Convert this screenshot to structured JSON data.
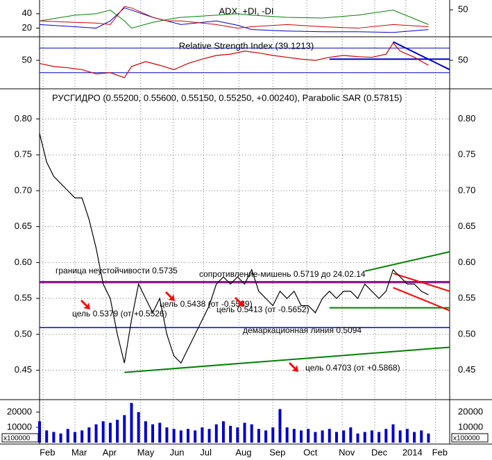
{
  "xaxis": {
    "xlim": [
      0,
      58
    ],
    "xticks": [
      {
        "value": 0.5,
        "label": "Feb"
      },
      {
        "value": 5,
        "label": "Mar"
      },
      {
        "value": 9.4,
        "label": "Apr"
      },
      {
        "value": 14.3,
        "label": "May"
      },
      {
        "value": 18.9,
        "label": "Jun"
      },
      {
        "value": 23.2,
        "label": "Jul"
      },
      {
        "value": 28.2,
        "label": "Aug"
      },
      {
        "value": 33,
        "label": "Sep"
      },
      {
        "value": 37.8,
        "label": "Oct"
      },
      {
        "value": 42.8,
        "label": "Nov"
      },
      {
        "value": 47.4,
        "label": "Dec"
      },
      {
        "value": 51.8,
        "label": "2014"
      },
      {
        "value": 56,
        "label": "Feb"
      }
    ]
  },
  "chart_data": [
    {
      "type": "line",
      "title": "ADX, +DI, -DI",
      "ylim": [
        9,
        59
      ],
      "yticks": [
        20,
        40
      ],
      "y2lim": [
        10,
        65
      ],
      "y2ticks": [
        50
      ],
      "x": [
        0,
        5,
        8,
        10,
        12,
        13,
        16,
        18,
        20,
        25,
        28,
        30,
        35,
        40,
        45,
        50,
        55
      ],
      "series": [
        {
          "color": "#0000cc",
          "values": [
            25,
            22,
            20,
            30,
            48,
            45,
            35,
            30,
            25,
            30,
            24,
            18,
            16,
            15,
            15,
            14,
            18
          ]
        },
        {
          "color": "#008000",
          "values": [
            30,
            38,
            40,
            45,
            30,
            20,
            28,
            32,
            35,
            38,
            40,
            38,
            35,
            34,
            38,
            45,
            25
          ]
        },
        {
          "color": "#cc0000",
          "values": [
            30,
            28,
            27,
            25,
            50,
            48,
            35,
            30,
            30,
            25,
            20,
            22,
            25,
            22,
            20,
            25,
            22
          ]
        }
      ]
    },
    {
      "type": "line",
      "title": "Relative Strength Index (39.1213)",
      "ylim": [
        5,
        86
      ],
      "yticks": [
        50
      ],
      "y2ticks": [
        50
      ],
      "levels": [
        {
          "value": 70,
          "color": "#0000cc"
        },
        {
          "value": 30,
          "color": "#0000cc"
        }
      ],
      "x": [
        0,
        2,
        4,
        6,
        8,
        10,
        12,
        13,
        15,
        17,
        19,
        21,
        23,
        25,
        27,
        29,
        31,
        33,
        35,
        37,
        39,
        41,
        43,
        45,
        47,
        49,
        50,
        51,
        53,
        55
      ],
      "color": "#cc0000",
      "values": [
        45,
        40,
        38,
        35,
        28,
        30,
        22,
        40,
        48,
        42,
        35,
        45,
        52,
        58,
        60,
        65,
        62,
        58,
        55,
        52,
        50,
        55,
        58,
        56,
        55,
        60,
        78,
        65,
        55,
        42
      ],
      "trendlines": [
        {
          "x": [
            50,
            58
          ],
          "values": [
            80,
            35
          ],
          "color": "#0000cc"
        },
        {
          "x": [
            41,
            58
          ],
          "values": [
            52,
            52
          ],
          "color": "#0000cc"
        }
      ]
    },
    {
      "type": "line",
      "title": "РУСГИДРО (0.55200, 0.55600, 0.55150, 0.55250, +0.00240), Parabolic SAR (0.57815)",
      "ylim": [
        0.41,
        0.84
      ],
      "yticks": [
        0.45,
        {
          "value": 0.5,
          "label": "0.50"
        },
        0.55,
        {
          "value": 0.6,
          "label": "0.60"
        },
        0.65,
        {
          "value": 0.7,
          "label": "0.70"
        },
        0.75,
        {
          "value": 0.8,
          "label": "0.80"
        }
      ],
      "grid": true,
      "color": "#000000",
      "x": [
        0,
        1,
        2,
        3,
        4,
        5,
        6,
        7,
        8,
        9,
        10,
        11,
        12,
        13,
        14,
        15,
        16,
        17,
        18,
        19,
        20,
        21,
        22,
        23,
        24,
        25,
        26,
        27,
        28,
        29,
        30,
        31,
        32,
        33,
        34,
        35,
        36,
        37,
        38,
        39,
        40,
        41,
        42,
        43,
        44,
        45,
        46,
        47,
        48,
        49,
        50,
        51,
        52,
        53,
        54,
        55
      ],
      "values": [
        0.78,
        0.74,
        0.72,
        0.71,
        0.7,
        0.69,
        0.69,
        0.66,
        0.62,
        0.57,
        0.55,
        0.5,
        0.46,
        0.52,
        0.57,
        0.55,
        0.53,
        0.55,
        0.5,
        0.47,
        0.46,
        0.48,
        0.5,
        0.52,
        0.54,
        0.57,
        0.58,
        0.57,
        0.58,
        0.57,
        0.59,
        0.56,
        0.55,
        0.54,
        0.56,
        0.55,
        0.56,
        0.54,
        0.54,
        0.53,
        0.55,
        0.56,
        0.55,
        0.56,
        0.56,
        0.55,
        0.57,
        0.56,
        0.55,
        0.56,
        0.59,
        0.58,
        0.57,
        0.57,
        0.56,
        0.555
      ],
      "levels": [
        {
          "value": 0.5735,
          "color": "#800080",
          "label": "граница неустойчивости 0.5735",
          "label_color": "#0000cc"
        },
        {
          "value": 0.5719,
          "color": "#800080",
          "label": "сопротивление-мишень 0.5719 до 24.02.14",
          "label_color": "#cc0000"
        },
        {
          "value": 0.5094,
          "color": "#0000cc",
          "label": "демаркационная линия 0.5094",
          "label_color": "#0000cc"
        }
      ],
      "trendlines": [
        {
          "x": [
            12,
            58
          ],
          "values": [
            0.447,
            0.482
          ],
          "color": "#008000"
        },
        {
          "x": [
            46,
            58
          ],
          "values": [
            0.588,
            0.615
          ],
          "color": "#008000"
        },
        {
          "x": [
            41,
            58
          ],
          "values": [
            0.537,
            0.537
          ],
          "color": "#008000"
        },
        {
          "x": [
            50,
            58
          ],
          "values": [
            0.585,
            0.56
          ],
          "color": "#ff0000"
        },
        {
          "x": [
            50,
            58
          ],
          "values": [
            0.565,
            0.533
          ],
          "color": "#ff0000"
        }
      ],
      "annotations": [
        "цель 0.5379 (от +0.5526)",
        "цель 0.5438 (от -0.5589)",
        "цель 0.5413 (от -0.5652)",
        "цель 0.4703 (от +0.5868)"
      ],
      "annotation_color": "#cc0000"
    },
    {
      "type": "bar",
      "ylim": [
        0,
        27700
      ],
      "yticks": [
        20000,
        10000
      ],
      "multiplier": "x100000",
      "color": "#0000cc",
      "x": [
        0,
        1,
        2,
        3,
        4,
        5,
        6,
        7,
        8,
        9,
        10,
        11,
        12,
        13,
        14,
        15,
        16,
        17,
        18,
        19,
        20,
        21,
        22,
        23,
        24,
        25,
        26,
        27,
        28,
        29,
        30,
        31,
        32,
        33,
        34,
        35,
        36,
        37,
        38,
        39,
        40,
        41,
        42,
        43,
        44,
        45,
        46,
        47,
        48,
        49,
        50,
        51,
        52,
        53,
        54,
        55
      ],
      "values": [
        14000,
        8000,
        7000,
        6000,
        9000,
        7000,
        8000,
        10000,
        12000,
        14000,
        13000,
        15000,
        18000,
        26000,
        20000,
        14000,
        12000,
        13000,
        10000,
        9000,
        8000,
        9000,
        8000,
        10000,
        9000,
        12000,
        14000,
        11000,
        10000,
        13000,
        12000,
        9000,
        8000,
        10000,
        22000,
        10000,
        9000,
        8000,
        9000,
        7000,
        8000,
        9000,
        7000,
        8000,
        10000,
        6000,
        7000,
        8000,
        7000,
        9000,
        12000,
        8000,
        9000,
        7000,
        8000,
        6000
      ]
    }
  ]
}
